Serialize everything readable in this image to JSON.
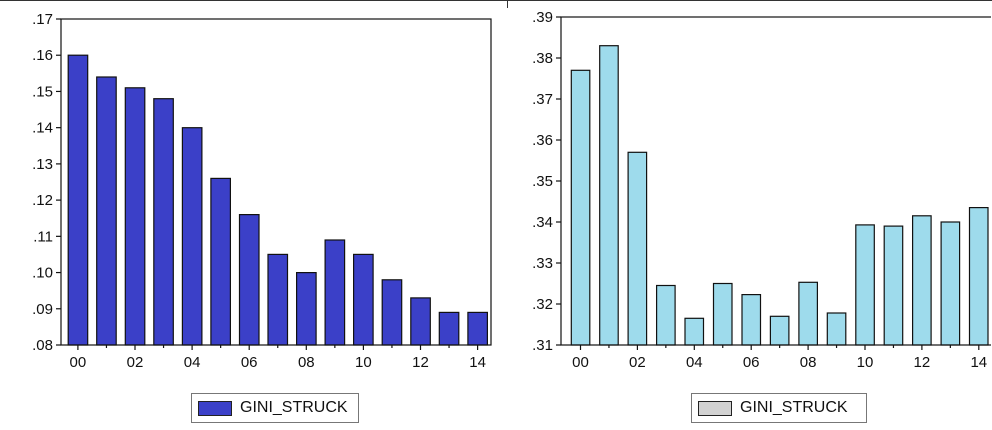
{
  "chart_data": [
    {
      "type": "bar",
      "categories": [
        "00",
        "01",
        "02",
        "03",
        "04",
        "05",
        "06",
        "07",
        "08",
        "09",
        "10",
        "11",
        "12",
        "13",
        "14"
      ],
      "x_tick_labels": [
        "00",
        "02",
        "04",
        "06",
        "08",
        "10",
        "12",
        "14"
      ],
      "values": [
        0.16,
        0.154,
        0.151,
        0.148,
        0.14,
        0.126,
        0.116,
        0.105,
        0.1,
        0.109,
        0.105,
        0.098,
        0.093,
        0.089,
        0.089
      ],
      "ylim": [
        0.08,
        0.17
      ],
      "y_tick_labels": [
        ".08",
        ".09",
        ".10",
        ".11",
        ".12",
        ".13",
        ".14",
        ".15",
        ".16",
        ".17"
      ],
      "legend": "GINI_STRUCK",
      "bar_color": "#3b40c8",
      "legend_color": "#3b40c8"
    },
    {
      "type": "bar",
      "categories": [
        "00",
        "01",
        "02",
        "03",
        "04",
        "05",
        "06",
        "07",
        "08",
        "09",
        "10",
        "11",
        "12",
        "13",
        "14"
      ],
      "x_tick_labels": [
        "00",
        "02",
        "04",
        "06",
        "08",
        "10",
        "12",
        "14"
      ],
      "values": [
        0.377,
        0.383,
        0.357,
        0.3245,
        0.3165,
        0.325,
        0.3223,
        0.317,
        0.3253,
        0.3178,
        0.3393,
        0.339,
        0.3415,
        0.34,
        0.3435
      ],
      "ylim": [
        0.31,
        0.39
      ],
      "y_tick_labels": [
        ".31",
        ".32",
        ".33",
        ".34",
        ".35",
        ".36",
        ".37",
        ".38",
        ".39"
      ],
      "legend": "GINI_STRUCK",
      "bar_color": "#9edbec",
      "legend_color": "#d2d2d2"
    }
  ]
}
